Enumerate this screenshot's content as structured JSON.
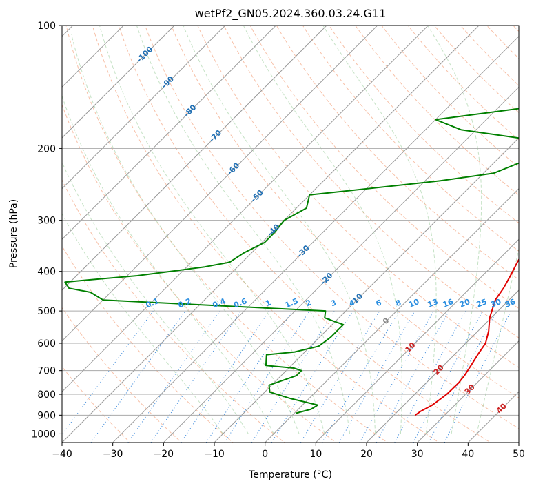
{
  "chart_data": {
    "type": "line",
    "subtype": "skew-t log-p diagram",
    "title": "wetPf2_GN05.2024.360.03.24.G11",
    "xlabel": "Temperature (°C)",
    "ylabel": "Pressure (hPa)",
    "xlim": [
      -40,
      50
    ],
    "ylim": [
      1050,
      100
    ],
    "y_scale": "log",
    "grid": true,
    "x_ticks": [
      -40,
      -30,
      -20,
      -10,
      0,
      10,
      20,
      30,
      40,
      50
    ],
    "y_ticks": [
      100,
      200,
      300,
      400,
      500,
      600,
      700,
      800,
      900,
      1000
    ],
    "series": [
      {
        "color": "#e00000",
        "x": [
          24.2,
          24.5,
          25.6,
          26.3,
          26.4,
          26.1,
          25.4,
          24.6,
          23.9,
          22.1,
          19.7,
          17.3,
          16.6,
          15.5,
          14.2,
          12.6,
          11.0,
          9.3,
          8.0,
          6.1,
          4.2,
          3.3,
          4.0,
          4.2,
          4.9,
          5.5,
          4.6,
          4.4,
          4.5
        ],
        "y": [
          900,
          880,
          850,
          800,
          750,
          720,
          680,
          640,
          600,
          560,
          520,
          470,
          440,
          410,
          380,
          340,
          300,
          260,
          240,
          220,
          200,
          180,
          170,
          150,
          140,
          130,
          120,
          110,
          100
        ]
      },
      {
        "color": "#008000",
        "x": [
          0.3,
          2.5,
          3.0,
          -3.5,
          -9.0,
          -10.5,
          -7.0,
          -7.0,
          -9.0,
          -15.0,
          -17.0,
          -12.0,
          -8.4,
          -7.8,
          -7.8,
          -12.8,
          -14.0,
          -60.0,
          -64.0,
          -69.0,
          -71.0,
          -67.0,
          -58.0,
          -46.5,
          -42.5,
          -41.5,
          -39.5,
          -39.5,
          -40.0,
          -38.0,
          -40.0,
          -17.0,
          -8.0,
          -3.2,
          -3.8,
          -8.0,
          -23.0,
          -30.0,
          -16.0,
          -6.3,
          -5.6,
          -8.0,
          -12.9,
          -8.3,
          -12.9,
          -6.0,
          -6.0,
          -8.0,
          -12.8,
          -6.7,
          -5.2,
          -6.3,
          -7.6,
          -9.7,
          -9.7,
          -9.8,
          -7.4,
          -5.0,
          -2.5,
          0.0
        ],
        "y": [
          890,
          870,
          850,
          820,
          790,
          760,
          720,
          700,
          690,
          680,
          640,
          630,
          610,
          580,
          540,
          520,
          500,
          470,
          450,
          440,
          425,
          420,
          410,
          390,
          380,
          360,
          340,
          320,
          300,
          280,
          260,
          240,
          230,
          210,
          200,
          190,
          180,
          170,
          160,
          150,
          140,
          130,
          125,
          120,
          115,
          110,
          106,
          103,
          102,
          101,
          100.5,
          100,
          100,
          100,
          100,
          100,
          100,
          100,
          100,
          100
        ]
      }
    ],
    "isotherm_labels": [
      "-100",
      "-90",
      "-80",
      "-70",
      "-60",
      "-50",
      "-40",
      "-30",
      "-20",
      "-10",
      "0",
      "10",
      "20",
      "30",
      "40"
    ],
    "mixing_ratio_labels": [
      "0.1",
      "0.2",
      "0.4",
      "0.6",
      "1",
      "1.5",
      "2",
      "3",
      "4",
      "6",
      "8",
      "10",
      "13",
      "16",
      "20",
      "25",
      "30",
      "36"
    ]
  }
}
